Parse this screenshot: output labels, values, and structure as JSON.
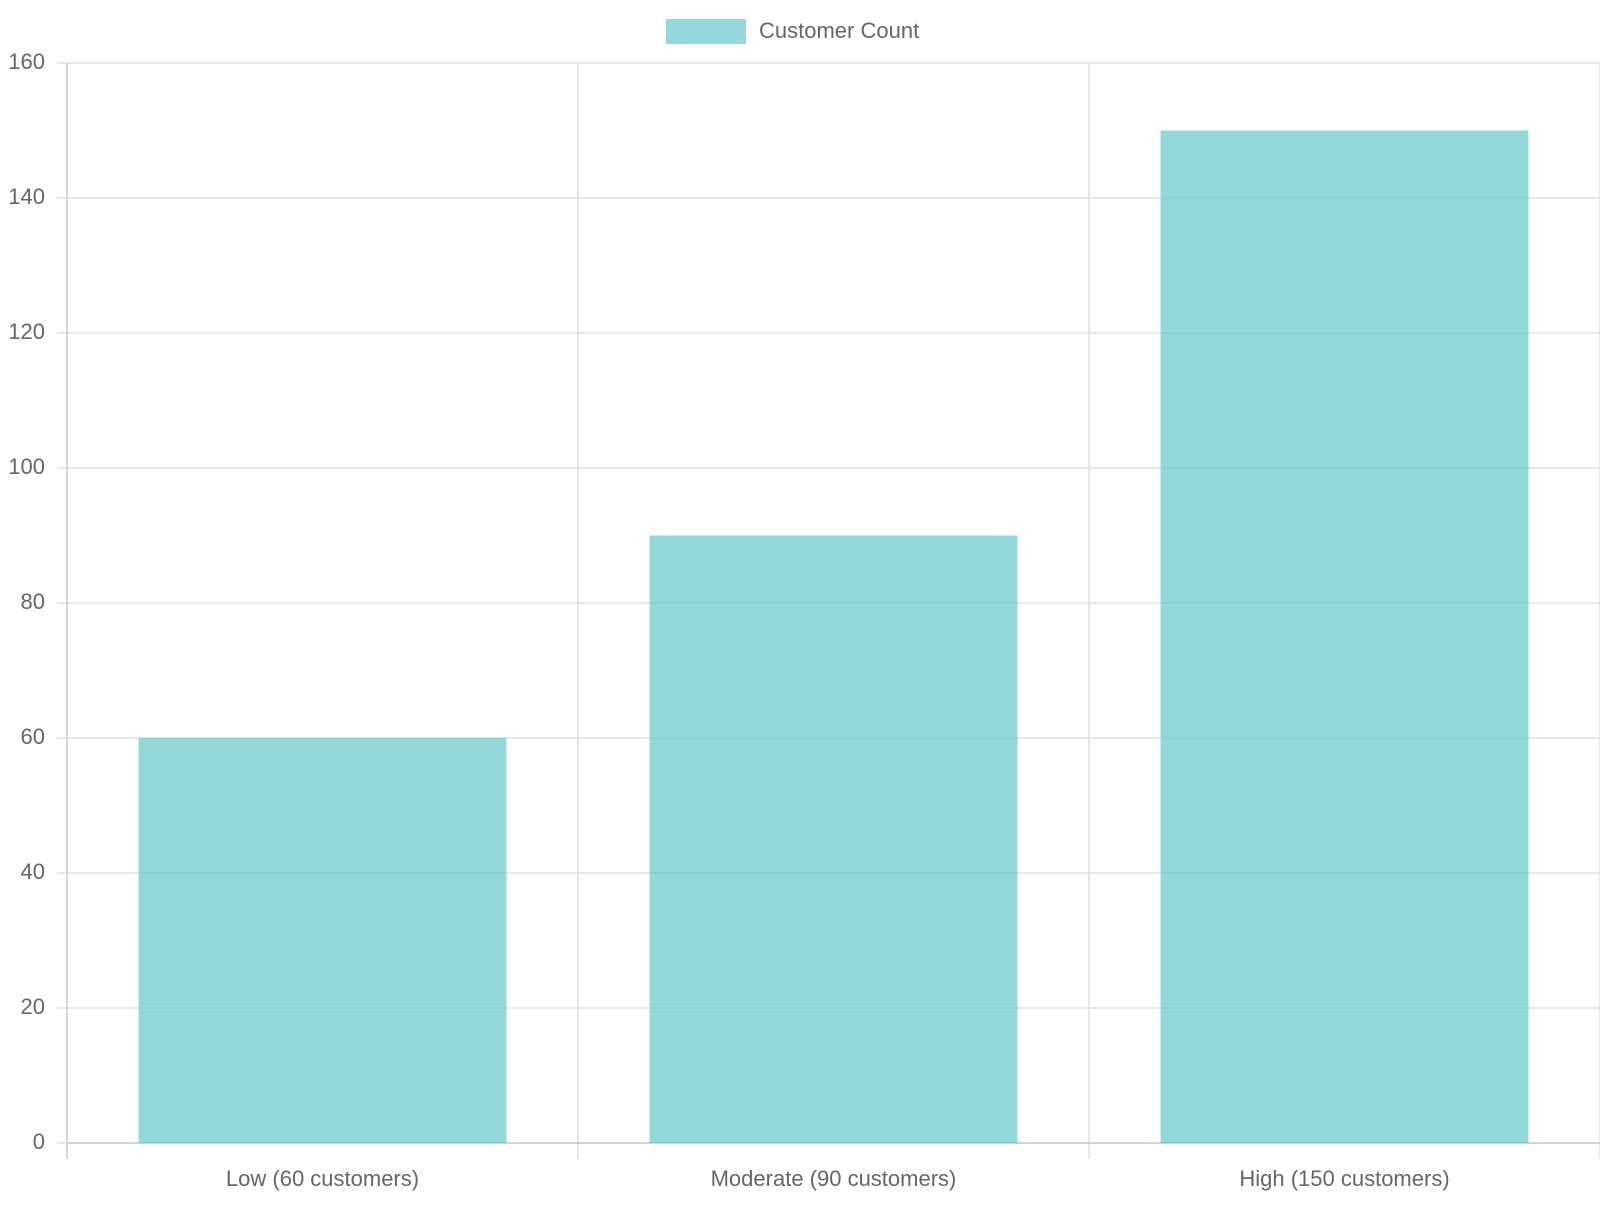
{
  "chart_data": {
    "type": "bar",
    "categories": [
      "Low (60 customers)",
      "Moderate (90 customers)",
      "High (150 customers)"
    ],
    "series": [
      {
        "name": "Customer Count",
        "color": "rgba(75, 192, 192, 0.6)",
        "values": [
          60,
          90,
          150
        ]
      }
    ],
    "ylim": [
      0,
      160
    ],
    "yticks": [
      0,
      20,
      40,
      60,
      80,
      100,
      120,
      140,
      160
    ],
    "grid": true,
    "legend": "top"
  }
}
